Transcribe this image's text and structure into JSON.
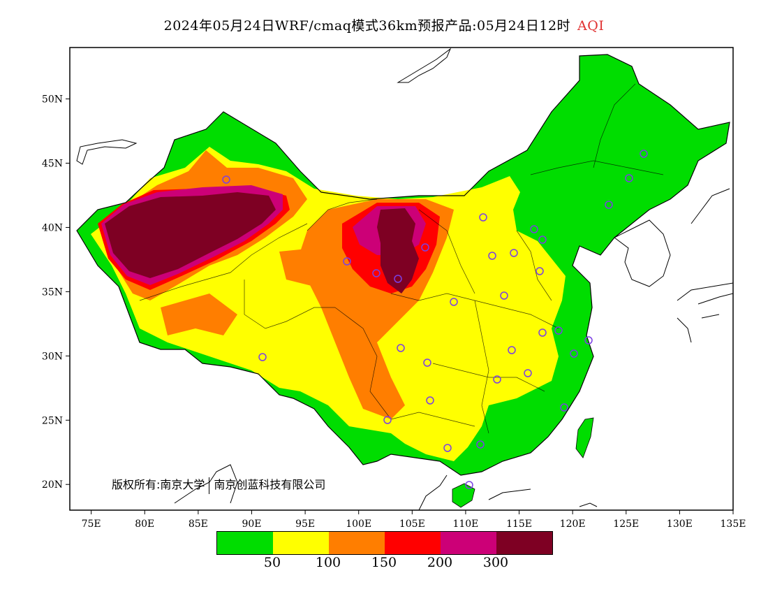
{
  "title": {
    "main": "2024年05月24日WRF/cmaq模式36km预报产品:05月24日12时",
    "variable": "AQI"
  },
  "axes": {
    "lon_labels": [
      "75E",
      "80E",
      "85E",
      "90E",
      "95E",
      "100E",
      "105E",
      "110E",
      "115E",
      "120E",
      "125E",
      "130E",
      "135E"
    ],
    "lat_labels": [
      "50N",
      "45N",
      "40N",
      "35N",
      "30N",
      "25N",
      "20N"
    ],
    "lon_range": [
      73,
      135
    ],
    "lat_range": [
      18,
      54
    ]
  },
  "copyright": {
    "left": "版权所有:南京大学",
    "right": "南京创蓝科技有限公司"
  },
  "legend": {
    "colors": [
      "#00dd00",
      "#ffff00",
      "#ff7e00",
      "#ff0000",
      "#cc0077",
      "#7e0023"
    ],
    "labels": [
      "50",
      "100",
      "150",
      "200",
      "300"
    ]
  },
  "colors": {
    "good": "#00dd00",
    "moderate": "#ffff00",
    "usg": "#ff7e00",
    "unhealthy": "#ff0000",
    "very_unhealthy": "#cc0077",
    "hazardous": "#7e0023",
    "station_ring": "#7b3fe4"
  },
  "station_icon": "circle-station-icon"
}
